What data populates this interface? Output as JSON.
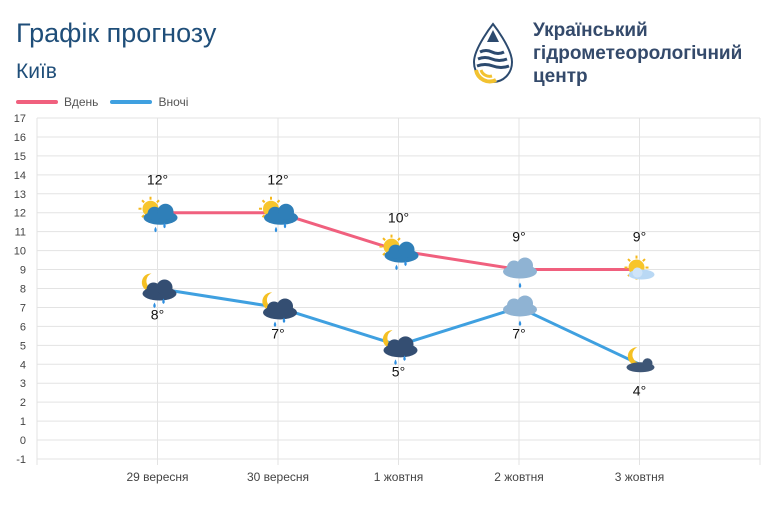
{
  "header": {
    "title": "Графік прогнозу",
    "city": "Київ",
    "org_line1": "Український",
    "org_line2": "гідрометеорологічний",
    "org_line3": "центр"
  },
  "legend": {
    "day_label": "Вдень",
    "night_label": "Вночі"
  },
  "colors": {
    "day": "#f0607e",
    "night": "#3fa0e0",
    "title": "#1f4e79",
    "grid": "#e3e3e3"
  },
  "chart_data": {
    "type": "line",
    "categories": [
      "29 вересня",
      "30 вересня",
      "1 жовтня",
      "2 жовтня",
      "3 жовтня"
    ],
    "series": [
      {
        "name": "Вдень",
        "values": [
          12,
          12,
          10,
          9,
          9
        ],
        "labels": [
          "12°",
          "12°",
          "10°",
          "9°",
          "9°"
        ],
        "icons": [
          "sun-cloud-rain-icon",
          "sun-cloud-rain-icon",
          "sun-cloud-rain-icon",
          "cloud-rain-icon",
          "sun-cloud-icon"
        ]
      },
      {
        "name": "Вночі",
        "values": [
          8,
          7,
          5,
          7,
          4
        ],
        "labels": [
          "8°",
          "7°",
          "5°",
          "7°",
          "4°"
        ],
        "icons": [
          "moon-cloud-rain-icon",
          "moon-cloud-rain-icon",
          "moon-cloud-rain-icon",
          "cloud-rain-icon",
          "moon-cloud-icon"
        ]
      }
    ],
    "ylim": [
      -1,
      17
    ],
    "yticks": [
      "-1",
      "0",
      "1",
      "2",
      "3",
      "4",
      "5",
      "6",
      "7",
      "8",
      "9",
      "10",
      "11",
      "12",
      "13",
      "14",
      "15",
      "16",
      "17"
    ],
    "xlabel": "",
    "ylabel": "",
    "grid": true,
    "legend_position": "top-left"
  }
}
